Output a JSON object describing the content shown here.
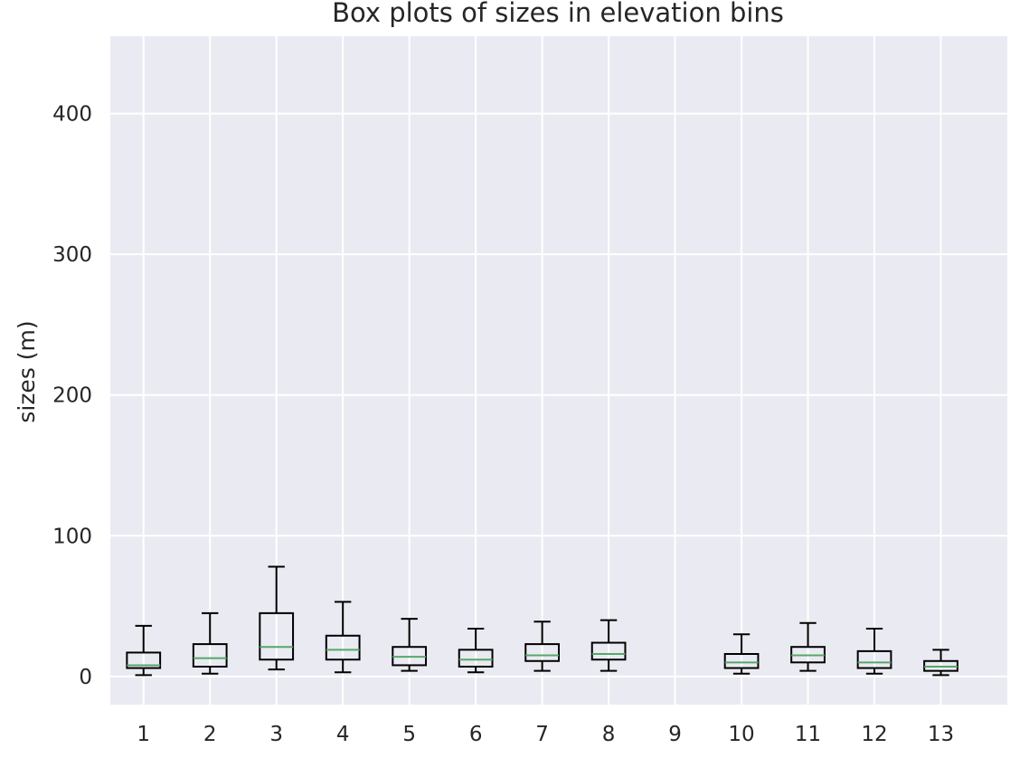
{
  "chart_data": {
    "type": "box",
    "title": "Box plots of sizes in elevation bins",
    "xlabel": "",
    "ylabel": "sizes (m)",
    "ylim": [
      -20,
      455
    ],
    "yticks": [
      0,
      100,
      200,
      300,
      400
    ],
    "grid": true,
    "colors": {
      "background": "#EAEAF2",
      "grid": "#FFFFFF",
      "box": "#000000",
      "median": "#55A868",
      "text": "#262626"
    },
    "categories": [
      "1",
      "2",
      "3",
      "4",
      "5",
      "6",
      "7",
      "8",
      "9",
      "10",
      "11",
      "12",
      "13"
    ],
    "boxes": [
      {
        "category": "1",
        "whisker_low": 1,
        "q1": 6,
        "median": 8,
        "q3": 17,
        "whisker_high": 36
      },
      {
        "category": "2",
        "whisker_low": 2,
        "q1": 7,
        "median": 13,
        "q3": 23,
        "whisker_high": 45
      },
      {
        "category": "3",
        "whisker_low": 5,
        "q1": 12,
        "median": 21,
        "q3": 45,
        "whisker_high": 78
      },
      {
        "category": "4",
        "whisker_low": 3,
        "q1": 12,
        "median": 19,
        "q3": 29,
        "whisker_high": 53
      },
      {
        "category": "5",
        "whisker_low": 4,
        "q1": 8,
        "median": 14,
        "q3": 21,
        "whisker_high": 41
      },
      {
        "category": "6",
        "whisker_low": 3,
        "q1": 7,
        "median": 12,
        "q3": 19,
        "whisker_high": 34
      },
      {
        "category": "7",
        "whisker_low": 4,
        "q1": 11,
        "median": 15,
        "q3": 23,
        "whisker_high": 39
      },
      {
        "category": "8",
        "whisker_low": 4,
        "q1": 12,
        "median": 16,
        "q3": 24,
        "whisker_high": 40
      },
      {
        "category": "9",
        "empty": true
      },
      {
        "category": "10",
        "whisker_low": 2,
        "q1": 6,
        "median": 10,
        "q3": 16,
        "whisker_high": 30
      },
      {
        "category": "11",
        "whisker_low": 4,
        "q1": 10,
        "median": 15,
        "q3": 21,
        "whisker_high": 38
      },
      {
        "category": "12",
        "whisker_low": 2,
        "q1": 6,
        "median": 10,
        "q3": 18,
        "whisker_high": 34
      },
      {
        "category": "13",
        "whisker_low": 1,
        "q1": 4,
        "median": 7,
        "q3": 11,
        "whisker_high": 19
      }
    ]
  }
}
